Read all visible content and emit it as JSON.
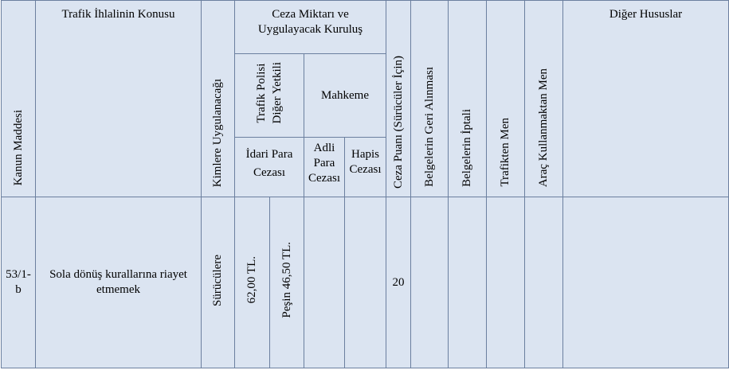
{
  "header": {
    "kanun_maddesi": "Kanun Maddesi",
    "ihlal_konusu": "Trafik İhlalinin Konusu",
    "kimlere": "Kimlere Uygulanacağı",
    "ceza_miktari_line1": "Ceza Miktarı ve",
    "ceza_miktari_line2": "Uygulayacak Kuruluş",
    "trafik_polisi_line1": "Trafik Polisi",
    "trafik_polisi_line2": "Diğer Yetkili",
    "mahkeme": "Mahkeme",
    "idari_para_line1": "İdari Para",
    "idari_para_line2": "Cezası",
    "adli_para_line1": "Adli",
    "adli_para_line2": "Para",
    "adli_para_line3": "Cezası",
    "hapis_line1": "Hapis",
    "hapis_line2": "Cezası",
    "ceza_puani": "Ceza Puanı (Sürücüler İçin)",
    "belge_geri": "Belgelerin Geri Alınması",
    "belge_iptal": "Belgelerin İptali",
    "trafikten_men": "Trafikten Men",
    "arac_kullanmaktan_men": "Araç Kullanmaktan Men",
    "diger": "Diğer Hususlar"
  },
  "row": {
    "madde_line1": "53/1-",
    "madde_line2": "b",
    "konu_line1": "Sola dönüş kurallarına riayet",
    "konu_line2": "etmemek",
    "kimlere": "Sürücülere",
    "idari_para": "62,00 TL.",
    "pesin": "Peşin 46,50 TL.",
    "adli_para": "",
    "hapis": "",
    "ceza_puani": "20",
    "belge_geri": "",
    "belge_iptal": "",
    "trafikten_men": "",
    "arac_men": "",
    "diger": ""
  }
}
